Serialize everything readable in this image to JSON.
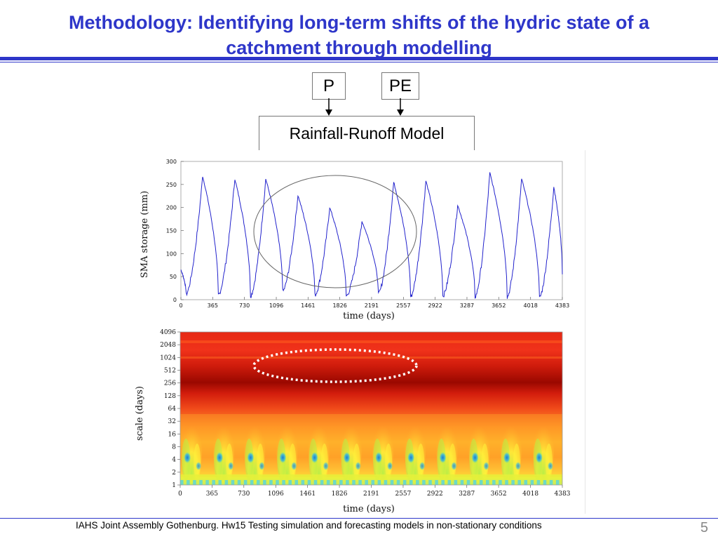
{
  "slide": {
    "title_line1": "Methodology: Identifying long-term shifts of the hydric state of a",
    "title_line2": "catchment through modelling",
    "box_p": "P",
    "box_pe": "PE",
    "box_model": "Rainfall-Runoff Model",
    "footer": "IAHS Joint Assembly Gothenburg. Hw15 Testing simulation and forecasting models in non-stationary conditions",
    "page_number": "5",
    "accent_color": "#2e36c9"
  },
  "chart_data": [
    {
      "type": "line",
      "xlabel": "time (days)",
      "ylabel": "SMA storage (mm)",
      "xticks": [
        "0",
        "365",
        "730",
        "1096",
        "1461",
        "1826",
        "2191",
        "2557",
        "2922",
        "3287",
        "3652",
        "4018",
        "4383"
      ],
      "yticks": [
        "0",
        "50",
        "100",
        "150",
        "200",
        "250",
        "300"
      ],
      "xlim": [
        0,
        4383
      ],
      "ylim": [
        0,
        300
      ],
      "series_color": "#2222cc",
      "annual_peaks": [
        {
          "x": 250,
          "y": 268
        },
        {
          "x": 620,
          "y": 262
        },
        {
          "x": 975,
          "y": 262
        },
        {
          "x": 1345,
          "y": 226
        },
        {
          "x": 1710,
          "y": 200
        },
        {
          "x": 2080,
          "y": 170
        },
        {
          "x": 2445,
          "y": 255
        },
        {
          "x": 2815,
          "y": 258
        },
        {
          "x": 3180,
          "y": 205
        },
        {
          "x": 3550,
          "y": 275
        },
        {
          "x": 3915,
          "y": 262
        },
        {
          "x": 4285,
          "y": 245
        }
      ],
      "annual_minima": [
        {
          "x": 60,
          "y": 12
        },
        {
          "x": 430,
          "y": 10
        },
        {
          "x": 800,
          "y": 8
        },
        {
          "x": 1170,
          "y": 18
        },
        {
          "x": 1540,
          "y": 10
        },
        {
          "x": 1900,
          "y": 8
        },
        {
          "x": 2270,
          "y": 12
        },
        {
          "x": 2640,
          "y": 6
        },
        {
          "x": 3010,
          "y": 8
        },
        {
          "x": 3380,
          "y": 6
        },
        {
          "x": 3750,
          "y": 6
        },
        {
          "x": 4120,
          "y": 4
        }
      ],
      "start_value": 65,
      "end_value": 55,
      "annotation": "ellipse highlighting low-storage years (≈1096–2557 days)"
    },
    {
      "type": "heatmap",
      "xlabel": "time (days)",
      "ylabel": "scale (days)",
      "xticks": [
        "0",
        "365",
        "730",
        "1096",
        "1461",
        "1826",
        "2191",
        "2557",
        "2922",
        "3287",
        "3652",
        "4018",
        "4383"
      ],
      "yticks": [
        "1",
        "2",
        "4",
        "8",
        "16",
        "32",
        "64",
        "128",
        "256",
        "512",
        "1024",
        "2048",
        "4096"
      ],
      "colormap": [
        "#2fb4e6",
        "#4fd8c8",
        "#b8f046",
        "#fff23a",
        "#ffb02a",
        "#ff6a1e",
        "#e62814",
        "#a00a00"
      ],
      "annotation": "dotted white ellipse at scale ≈512–1024 days, time ≈1096–2557 days"
    }
  ]
}
